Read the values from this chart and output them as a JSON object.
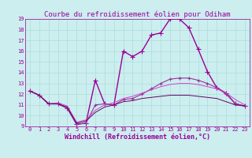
{
  "title": "Courbe du refroidissement éolien pour Odiham",
  "xlabel": "Windchill (Refroidissement éolien,°C)",
  "bg_color": "#cceeee",
  "grid_color": "#aadddd",
  "line_color": "#990099",
  "xlim": [
    -0.5,
    23.5
  ],
  "ylim": [
    9,
    19
  ],
  "yticks": [
    9,
    10,
    11,
    12,
    13,
    14,
    15,
    16,
    17,
    18,
    19
  ],
  "xticks": [
    0,
    1,
    2,
    3,
    4,
    5,
    6,
    7,
    8,
    9,
    10,
    11,
    12,
    13,
    14,
    15,
    16,
    17,
    18,
    19,
    20,
    21,
    22,
    23
  ],
  "series": [
    {
      "x": [
        0,
        1,
        2,
        3,
        4,
        5,
        6,
        7,
        8,
        9,
        10,
        11,
        12,
        13,
        14,
        15,
        16,
        17,
        18,
        19,
        20,
        21,
        22,
        23
      ],
      "y": [
        12.3,
        11.9,
        11.1,
        11.1,
        10.7,
        9.2,
        9.3,
        13.3,
        11.1,
        11.0,
        16.0,
        15.5,
        16.0,
        17.5,
        17.7,
        19.0,
        19.0,
        18.2,
        16.2,
        14.1,
        12.6,
        12.1,
        11.1,
        10.9
      ],
      "color": "#990099",
      "linewidth": 1.0,
      "marker": "+",
      "markersize": 4
    },
    {
      "x": [
        0,
        1,
        2,
        3,
        4,
        5,
        6,
        7,
        8,
        9,
        10,
        11,
        12,
        13,
        14,
        15,
        16,
        17,
        18,
        19,
        20,
        21,
        22,
        23
      ],
      "y": [
        12.3,
        11.9,
        11.1,
        11.1,
        10.7,
        9.2,
        9.3,
        11.0,
        11.1,
        11.0,
        11.5,
        11.6,
        12.0,
        12.5,
        13.0,
        13.4,
        13.5,
        13.5,
        13.3,
        13.0,
        12.6,
        12.0,
        11.1,
        10.9
      ],
      "color": "#993399",
      "linewidth": 0.8,
      "marker": "+",
      "markersize": 3
    },
    {
      "x": [
        0,
        1,
        2,
        3,
        4,
        5,
        6,
        7,
        8,
        9,
        10,
        11,
        12,
        13,
        14,
        15,
        16,
        17,
        18,
        19,
        20,
        21,
        22,
        23
      ],
      "y": [
        12.3,
        11.9,
        11.1,
        11.2,
        10.9,
        9.4,
        9.6,
        10.5,
        11.0,
        11.2,
        11.6,
        11.8,
        12.1,
        12.4,
        12.7,
        12.9,
        13.0,
        13.0,
        12.9,
        12.7,
        12.5,
        12.1,
        11.5,
        11.0
      ],
      "color": "#cc44cc",
      "linewidth": 0.7,
      "marker": null,
      "markersize": 0
    },
    {
      "x": [
        0,
        1,
        2,
        3,
        4,
        5,
        6,
        7,
        8,
        9,
        10,
        11,
        12,
        13,
        14,
        15,
        16,
        17,
        18,
        19,
        20,
        21,
        22,
        23
      ],
      "y": [
        12.3,
        11.9,
        11.1,
        11.1,
        10.8,
        9.3,
        9.5,
        10.3,
        10.8,
        11.0,
        11.3,
        11.4,
        11.6,
        11.7,
        11.8,
        11.9,
        11.9,
        11.9,
        11.8,
        11.7,
        11.6,
        11.3,
        11.0,
        10.9
      ],
      "color": "#660066",
      "linewidth": 0.7,
      "marker": null,
      "markersize": 0
    }
  ],
  "title_fontsize": 6.5,
  "tick_fontsize": 5.0,
  "xlabel_fontsize": 6.0
}
